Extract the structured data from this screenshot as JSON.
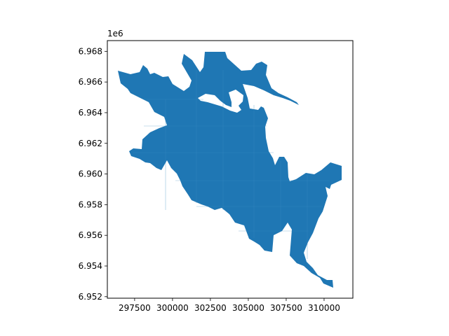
{
  "chart_data": {
    "type": "map",
    "offset_text": "1e6",
    "xlim": [
      295700,
      311900
    ],
    "ylim": [
      6951900,
      6968700
    ],
    "xticks": [
      {
        "value": 297500,
        "label": "297500"
      },
      {
        "value": 300000,
        "label": "300000"
      },
      {
        "value": 302500,
        "label": "302500"
      },
      {
        "value": 305000,
        "label": "305000"
      },
      {
        "value": 307500,
        "label": "307500"
      },
      {
        "value": 310000,
        "label": "310000"
      }
    ],
    "yticks": [
      {
        "value": 6952000,
        "label": "6.952"
      },
      {
        "value": 6954000,
        "label": "6.954"
      },
      {
        "value": 6956000,
        "label": "6.956"
      },
      {
        "value": 6958000,
        "label": "6.958"
      },
      {
        "value": 6960000,
        "label": "6.960"
      },
      {
        "value": 6962000,
        "label": "6.962"
      },
      {
        "value": 6964000,
        "label": "6.964"
      },
      {
        "value": 6966000,
        "label": "6.966"
      },
      {
        "value": 6968000,
        "label": "6.968"
      }
    ],
    "fill_color": "#1f77b4",
    "grid": false
  }
}
